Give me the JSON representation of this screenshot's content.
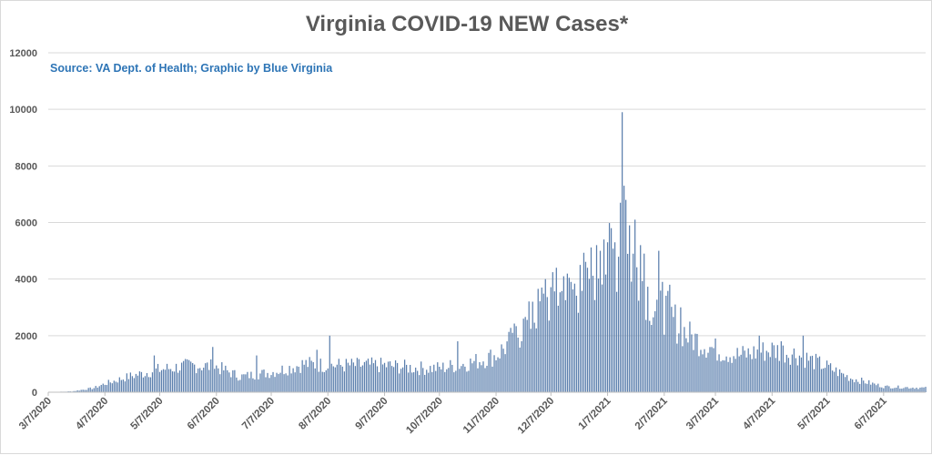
{
  "chart_data": {
    "type": "bar",
    "title": "Virginia COVID-19 NEW Cases*",
    "subtitle": "Source: VA Dept. of Health; Graphic by Blue Virginia",
    "xlabel": "",
    "ylabel": "",
    "ylim": [
      0,
      12000
    ],
    "yticks": [
      0,
      2000,
      4000,
      6000,
      8000,
      10000,
      12000
    ],
    "x_start": "2020-03-07",
    "x_end": "2021-06-30",
    "xtick_labels": [
      "3/7/2020",
      "4/7/2020",
      "5/7/2020",
      "6/7/2020",
      "7/7/2020",
      "8/7/2020",
      "9/7/2020",
      "10/7/2020",
      "11/7/2020",
      "12/7/2020",
      "1/7/2021",
      "2/7/2021",
      "3/7/2021",
      "4/7/2021",
      "5/7/2021",
      "6/7/2021"
    ],
    "grid": true,
    "bar_color": "#5b7fad",
    "monthly_profile": [
      {
        "date": "2020-03-07",
        "value": 0
      },
      {
        "date": "2020-03-20",
        "value": 30
      },
      {
        "date": "2020-04-01",
        "value": 150
      },
      {
        "date": "2020-04-07",
        "value": 300
      },
      {
        "date": "2020-04-20",
        "value": 550
      },
      {
        "date": "2020-05-07",
        "value": 800
      },
      {
        "date": "2020-05-25",
        "value": 950
      },
      {
        "date": "2020-06-07",
        "value": 900
      },
      {
        "date": "2020-06-20",
        "value": 550
      },
      {
        "date": "2020-07-07",
        "value": 700
      },
      {
        "date": "2020-07-25",
        "value": 1000
      },
      {
        "date": "2020-08-07",
        "value": 950
      },
      {
        "date": "2020-08-20",
        "value": 950
      },
      {
        "date": "2020-09-07",
        "value": 950
      },
      {
        "date": "2020-09-25",
        "value": 850
      },
      {
        "date": "2020-10-07",
        "value": 850
      },
      {
        "date": "2020-10-25",
        "value": 1050
      },
      {
        "date": "2020-11-07",
        "value": 1300
      },
      {
        "date": "2020-11-20",
        "value": 2100
      },
      {
        "date": "2020-12-01",
        "value": 3000
      },
      {
        "date": "2020-12-07",
        "value": 3300
      },
      {
        "date": "2020-12-20",
        "value": 3600
      },
      {
        "date": "2021-01-01",
        "value": 4400
      },
      {
        "date": "2021-01-07",
        "value": 4600
      },
      {
        "date": "2021-01-15",
        "value": 5000
      },
      {
        "date": "2021-01-22",
        "value": 4600
      },
      {
        "date": "2021-02-01",
        "value": 3000
      },
      {
        "date": "2021-02-07",
        "value": 2900
      },
      {
        "date": "2021-02-20",
        "value": 2000
      },
      {
        "date": "2021-03-07",
        "value": 1500
      },
      {
        "date": "2021-03-20",
        "value": 1300
      },
      {
        "date": "2021-04-07",
        "value": 1500
      },
      {
        "date": "2021-04-20",
        "value": 1350
      },
      {
        "date": "2021-05-07",
        "value": 900
      },
      {
        "date": "2021-05-20",
        "value": 500
      },
      {
        "date": "2021-06-01",
        "value": 300
      },
      {
        "date": "2021-06-07",
        "value": 200
      },
      {
        "date": "2021-06-30",
        "value": 150
      }
    ],
    "spikes": [
      {
        "date": "2020-05-04",
        "value": 1300
      },
      {
        "date": "2020-06-05",
        "value": 1600
      },
      {
        "date": "2020-06-29",
        "value": 1300
      },
      {
        "date": "2020-08-01",
        "value": 1500
      },
      {
        "date": "2020-08-08",
        "value": 2000
      },
      {
        "date": "2020-10-17",
        "value": 1800
      },
      {
        "date": "2020-11-16",
        "value": 2100
      },
      {
        "date": "2020-11-22",
        "value": 2600
      },
      {
        "date": "2020-11-27",
        "value": 3200
      },
      {
        "date": "2020-12-02",
        "value": 3700
      },
      {
        "date": "2020-12-04",
        "value": 4000
      },
      {
        "date": "2020-12-10",
        "value": 4400
      },
      {
        "date": "2020-12-14",
        "value": 4100
      },
      {
        "date": "2020-12-18",
        "value": 3900
      },
      {
        "date": "2020-12-23",
        "value": 4500
      },
      {
        "date": "2020-12-27",
        "value": 4400
      },
      {
        "date": "2021-01-01",
        "value": 5200
      },
      {
        "date": "2021-01-03",
        "value": 5000
      },
      {
        "date": "2021-01-05",
        "value": 5400
      },
      {
        "date": "2021-01-07",
        "value": 5300
      },
      {
        "date": "2021-01-09",
        "value": 5800
      },
      {
        "date": "2021-01-11",
        "value": 5300
      },
      {
        "date": "2021-01-14",
        "value": 6700
      },
      {
        "date": "2021-01-15",
        "value": 9900
      },
      {
        "date": "2021-01-16",
        "value": 7300
      },
      {
        "date": "2021-01-17",
        "value": 6800
      },
      {
        "date": "2021-01-19",
        "value": 5900
      },
      {
        "date": "2021-01-22",
        "value": 6100
      },
      {
        "date": "2021-01-25",
        "value": 5200
      },
      {
        "date": "2021-01-27",
        "value": 4900
      },
      {
        "date": "2021-02-04",
        "value": 5000
      },
      {
        "date": "2021-02-06",
        "value": 3900
      },
      {
        "date": "2021-02-10",
        "value": 3800
      },
      {
        "date": "2021-02-16",
        "value": 3000
      },
      {
        "date": "2021-03-31",
        "value": 2000
      },
      {
        "date": "2021-04-12",
        "value": 1800
      },
      {
        "date": "2021-04-24",
        "value": 2000
      }
    ]
  }
}
